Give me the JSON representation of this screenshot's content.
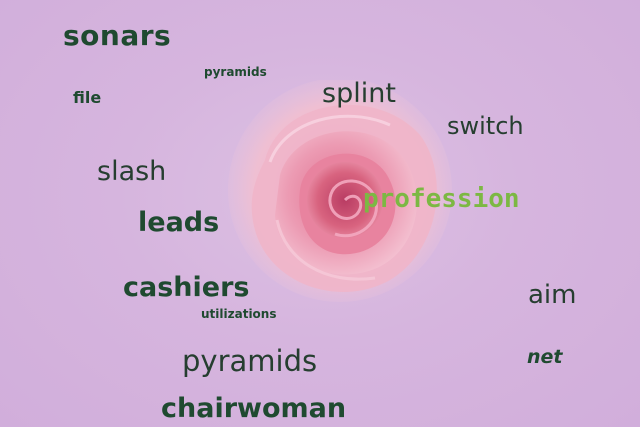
{
  "image": {
    "background_color": "#d4b3de",
    "subject": "pink-rose-icon"
  },
  "words": {
    "sonars": "sonars",
    "pyramids_small": "pyramids",
    "splint": "splint",
    "file": "file",
    "switch": "switch",
    "slash": "slash",
    "profession": "profession",
    "leads": "leads",
    "cashiers": "cashiers",
    "aim": "aim",
    "utilizations": "utilizations",
    "pyramids": "pyramids",
    "net": "net",
    "chairwoman": "chairwoman"
  },
  "colors": {
    "text_dark_green": "#1f4a30",
    "highlight_green": "#7cb843",
    "rose_pink": "#e68aa8"
  }
}
